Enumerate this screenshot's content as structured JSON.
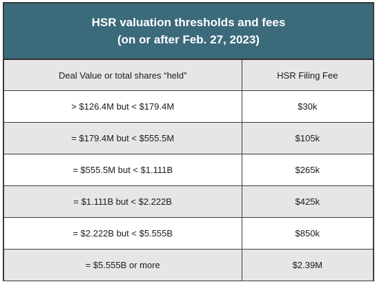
{
  "title": {
    "line1": "HSR valuation thresholds and fees",
    "line2": "(on or after Feb. 27, 2023)"
  },
  "table": {
    "headers": [
      "Deal Value or total shares “held”",
      "HSR Filing Fee"
    ],
    "rows": [
      [
        "> $126.4M but < $179.4M",
        "$30k"
      ],
      [
        "= $179.4M but < $555.5M",
        "$105k"
      ],
      [
        "= $555.5M but < $1.111B",
        "$265k"
      ],
      [
        "= $1.111B but < $2.222B",
        "$425k"
      ],
      [
        "= $2.222B but < $5.555B",
        "$850k"
      ],
      [
        "= $5.555B or more",
        "$2.39M"
      ]
    ]
  },
  "colors": {
    "title_background": "#3b6a7b",
    "shaded_row": "#e6e6e6",
    "border": "#3a3a3a"
  }
}
